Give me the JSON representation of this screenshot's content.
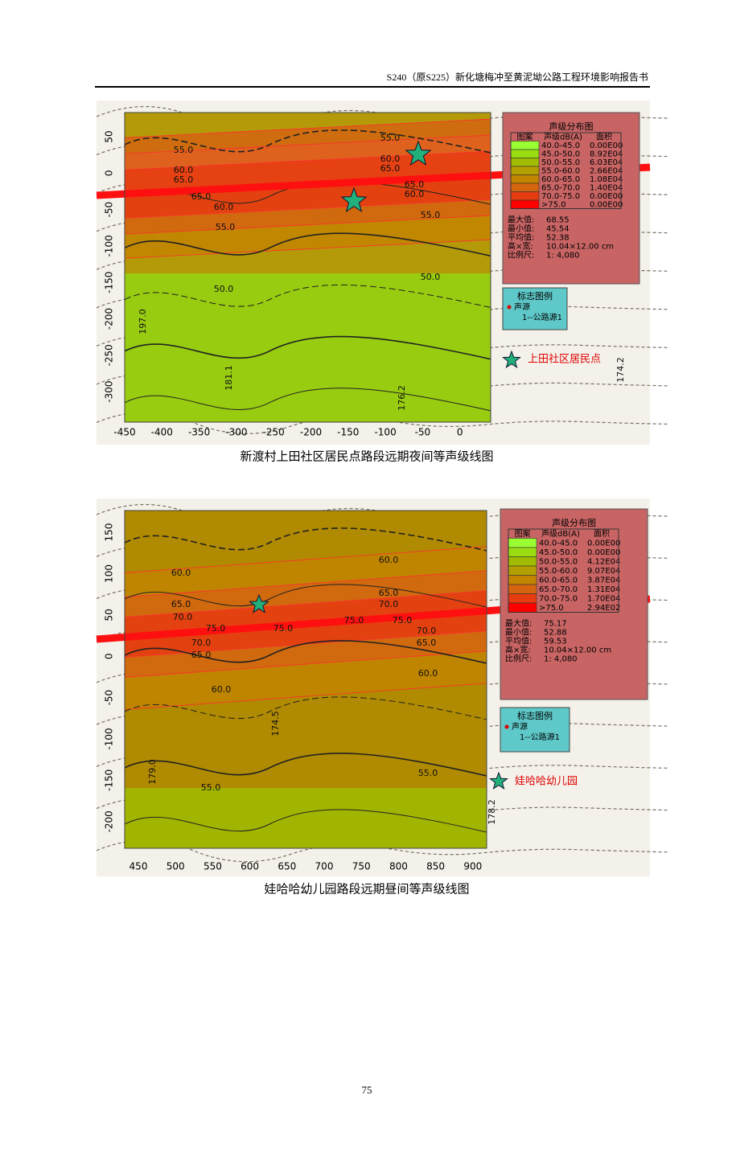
{
  "header": {
    "title": "S240（原S225）新化塘梅冲至黄泥坳公路工程环境影响报告书"
  },
  "figures": [
    {
      "caption": "新渡村上田社区居民点路段远期夜间等声级线图",
      "xticks": [
        -450,
        -400,
        -350,
        -300,
        -250,
        -200,
        -150,
        -100,
        -50,
        0
      ],
      "yticks": [
        50,
        0,
        -50,
        -100,
        -150,
        -200,
        -250,
        -300
      ],
      "legend": {
        "title": "声级分布图",
        "columns": [
          "图案",
          "声级dB(A)",
          "面积"
        ],
        "rows": [
          {
            "color": "#99ff33",
            "range": "40.0-45.0",
            "area": "0.00E00"
          },
          {
            "color": "#99dd11",
            "range": "45.0-50.0",
            "area": "8.92E04"
          },
          {
            "color": "#a0bb00",
            "range": "50.0-55.0",
            "area": "6.03E04"
          },
          {
            "color": "#b3a000",
            "range": "55.0-60.0",
            "area": "2.66E04"
          },
          {
            "color": "#c38400",
            "range": "60.0-65.0",
            "area": "1.08E04"
          },
          {
            "color": "#d46410",
            "range": "65.0-70.0",
            "area": "1.40E04"
          },
          {
            "color": "#e63c10",
            "range": "70.0-75.0",
            "area": "0.00E00"
          },
          {
            "color": "#ff0000",
            "range": ">75.0",
            "area": "0.00E00"
          }
        ]
      },
      "stats": [
        {
          "label": "最大值:",
          "value": "68.55"
        },
        {
          "label": "最小值:",
          "value": "45.54"
        },
        {
          "label": "平均值:",
          "value": "52.38"
        },
        {
          "label": "高×宽:",
          "value": "10.04×12.00 cm"
        },
        {
          "label": "比例尺:",
          "value": "1: 4,080"
        }
      ],
      "sign_legend": {
        "title": "标志图例",
        "items": [
          "声源",
          "1--公路源1"
        ]
      },
      "point_label": "上田社区居民点",
      "contour_labels": [
        "55.0",
        "60.0",
        "65.0",
        "65.0",
        "60.0",
        "55.0",
        "50.0",
        "55.0",
        "60.0",
        "65.0",
        "65.0",
        "60.0",
        "55.0",
        "50.0",
        "197.0",
        "181.1",
        "176.2",
        "174.2"
      ]
    },
    {
      "caption": "娃哈哈幼儿园路段远期昼间等声级线图",
      "xticks": [
        450,
        500,
        550,
        600,
        650,
        700,
        750,
        800,
        850,
        900
      ],
      "yticks": [
        150,
        100,
        50,
        0,
        -50,
        -100,
        -150,
        -200
      ],
      "legend": {
        "title": "声级分布图",
        "columns": [
          "图案",
          "声级dB(A)",
          "面积"
        ],
        "rows": [
          {
            "color": "#99ff33",
            "range": "40.0-45.0",
            "area": "0.00E00"
          },
          {
            "color": "#99dd11",
            "range": "45.0-50.0",
            "area": "0.00E00"
          },
          {
            "color": "#a0bb00",
            "range": "50.0-55.0",
            "area": "4.12E04"
          },
          {
            "color": "#b3a000",
            "range": "55.0-60.0",
            "area": "9.07E04"
          },
          {
            "color": "#c38400",
            "range": "60.0-65.0",
            "area": "3.87E04"
          },
          {
            "color": "#d46410",
            "range": "65.0-70.0",
            "area": "1.31E04"
          },
          {
            "color": "#e63c10",
            "range": "70.0-75.0",
            "area": "1.70E04"
          },
          {
            "color": "#ff0000",
            "range": ">75.0",
            "area": "2.94E02"
          }
        ]
      },
      "stats": [
        {
          "label": "最大值:",
          "value": "75.17"
        },
        {
          "label": "最小值:",
          "value": "52.88"
        },
        {
          "label": "平均值:",
          "value": "59.53"
        },
        {
          "label": "高×宽:",
          "value": "10.04×12.00 cm"
        },
        {
          "label": "比例尺:",
          "value": "1: 4,080"
        }
      ],
      "sign_legend": {
        "title": "标志图例",
        "items": [
          "声源",
          "1--公路源1"
        ]
      },
      "point_label": "娃哈哈幼儿园",
      "contour_labels": [
        "60.0",
        "65.0",
        "70.0",
        "75.0",
        "75.0",
        "75.0",
        "75.0",
        "70.0",
        "65.0",
        "60.0",
        "60.0",
        "65.0",
        "70.0",
        "70.0",
        "65.0",
        "60.0",
        "55.0",
        "55.0",
        "174.5",
        "179.0",
        "178.2"
      ]
    }
  ],
  "page_number": "75"
}
